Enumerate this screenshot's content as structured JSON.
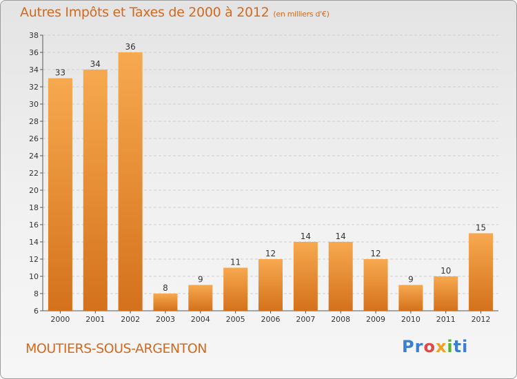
{
  "title": "Autres Impôts et Taxes de 2000 à 2012",
  "subtitle": "(en milliers d'€)",
  "place": "MOUTIERS-SOUS-ARGENTON",
  "logo": {
    "p1": "Pr",
    "p2": "o",
    "p3": "x",
    "p4": "i",
    "p5": "ti"
  },
  "colors": {
    "bar_light": "#f7a94f",
    "bar_dark": "#d4711c",
    "text_accent": "#d2691e"
  },
  "chart_data": {
    "type": "bar",
    "title": "Autres Impôts et Taxes de 2000 à 2012",
    "subtitle": "(en milliers d'€)",
    "categories": [
      "2000",
      "2001",
      "2002",
      "2003",
      "2004",
      "2005",
      "2006",
      "2007",
      "2008",
      "2009",
      "2010",
      "2011",
      "2012"
    ],
    "values": [
      33,
      34,
      36,
      8,
      9,
      11,
      12,
      14,
      14,
      12,
      9,
      10,
      15
    ],
    "ylim": [
      6,
      38
    ],
    "yticks": [
      6,
      8,
      10,
      12,
      14,
      16,
      18,
      20,
      22,
      24,
      26,
      28,
      30,
      32,
      34,
      36,
      38
    ],
    "grid": true,
    "data_labels": true
  }
}
